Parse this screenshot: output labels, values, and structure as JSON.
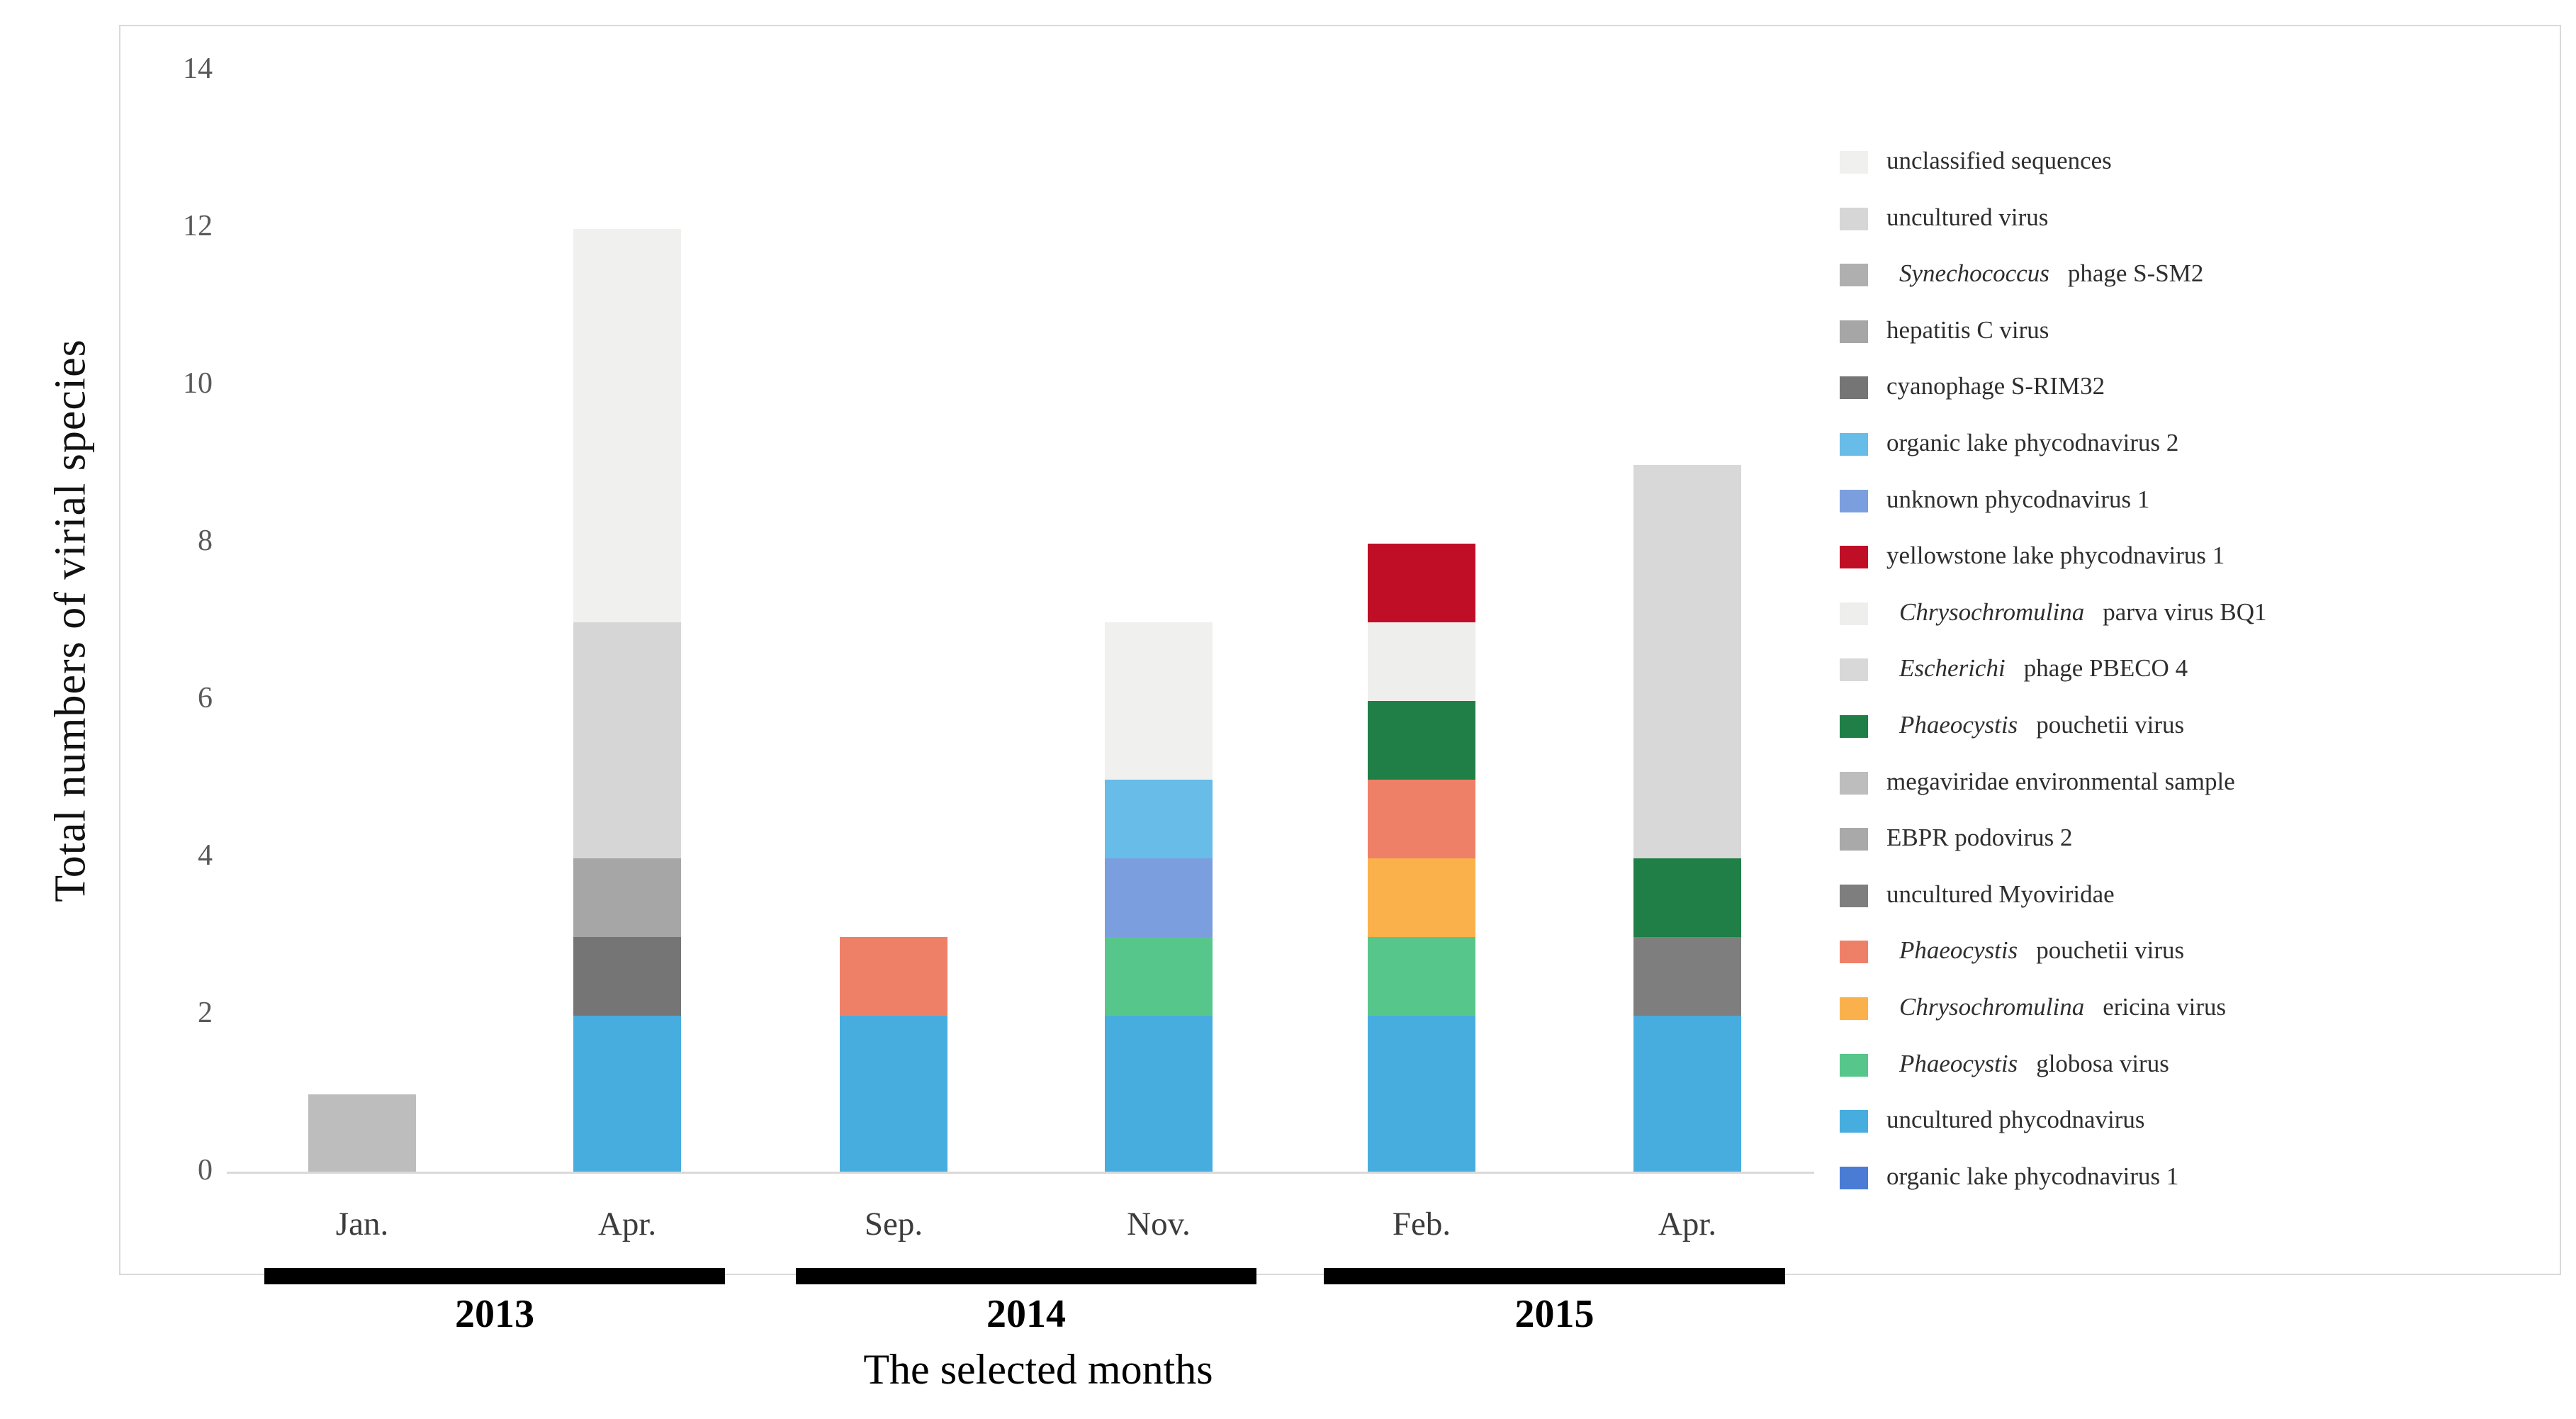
{
  "chart_data": {
    "type": "bar",
    "stacked": true,
    "title": "",
    "xlabel": "The selected months",
    "ylabel": "Total numbers of virial species",
    "ylim": [
      0,
      14
    ],
    "yticks": [
      0,
      2,
      4,
      6,
      8,
      10,
      12,
      14
    ],
    "grid": false,
    "legend_position": "right",
    "months": [
      "Jan.",
      "Apr.",
      "Sep.",
      "Nov.",
      "Feb.",
      "Apr."
    ],
    "year_groups": [
      {
        "label": "2013",
        "from": 0,
        "to": 1
      },
      {
        "label": "2014",
        "from": 2,
        "to": 3
      },
      {
        "label": "2015",
        "from": 4,
        "to": 5
      }
    ],
    "category_totals": [
      1,
      12,
      3,
      7,
      8,
      9
    ],
    "series": [
      {
        "name": "unclassified sequences",
        "italic": "",
        "text": "unclassified sequences",
        "color": "#f0f0ee",
        "values": [
          0,
          5,
          0,
          2,
          0,
          0
        ]
      },
      {
        "name": "uncultured virus",
        "italic": "",
        "text": "uncultured virus",
        "color": "#d6d6d6",
        "values": [
          0,
          3,
          0,
          0,
          0,
          0
        ]
      },
      {
        "name": "Synechococcus phage S-SM2",
        "italic": "Synechococcus",
        "text": "phage S-SM2",
        "color": "#afafaf",
        "values": [
          0,
          0,
          0,
          0,
          0,
          0
        ]
      },
      {
        "name": "hepatitis C virus",
        "italic": "",
        "text": "hepatitis C virus",
        "color": "#a6a6a6",
        "values": [
          0,
          1,
          0,
          0,
          0,
          0
        ]
      },
      {
        "name": "cyanophage S-RIM32",
        "italic": "",
        "text": "cyanophage S-RIM32",
        "color": "#757575",
        "values": [
          0,
          1,
          0,
          0,
          0,
          0
        ]
      },
      {
        "name": "organic lake phycodnavirus 2",
        "italic": "",
        "text": "organic lake phycodnavirus 2",
        "color": "#68bce8",
        "values": [
          0,
          0,
          0,
          1,
          0,
          0
        ]
      },
      {
        "name": "unknown phycodnavirus 1",
        "italic": "",
        "text": "unknown phycodnavirus 1",
        "color": "#7b9ede",
        "values": [
          0,
          0,
          0,
          1,
          0,
          0
        ]
      },
      {
        "name": "yellowstone lake phycodnavirus 1",
        "italic": "",
        "text": "yellowstone lake phycodnavirus 1",
        "color": "#c00e27",
        "values": [
          0,
          0,
          0,
          0,
          1,
          0
        ]
      },
      {
        "name": "Chrysochromulina parva virus BQ1",
        "italic": "Chrysochromulina",
        "text": "parva virus BQ1",
        "color": "#eeeeec",
        "values": [
          0,
          0,
          0,
          0,
          1,
          0
        ]
      },
      {
        "name": "Escherichi phage PBECO 4",
        "italic": "Escherichi",
        "text": "phage PBECO 4",
        "color": "#d8d8d8",
        "values": [
          0,
          0,
          0,
          0,
          0,
          5
        ]
      },
      {
        "name": "Phaeocystis pouchetii virus",
        "italic": "Phaeocystis",
        "text": "pouchetii virus",
        "color": "#1f7f47",
        "values": [
          0,
          0,
          0,
          0,
          1,
          1
        ]
      },
      {
        "name": "megaviridae environmental sample",
        "italic": "",
        "text": "megaviridae environmental sample",
        "color": "#bdbdbd",
        "values": [
          1,
          0,
          0,
          0,
          0,
          0
        ]
      },
      {
        "name": "EBPR podovirus 2",
        "italic": "",
        "text": "EBPR podovirus 2",
        "color": "#a9a9a9",
        "values": [
          0,
          0,
          0,
          0,
          0,
          0
        ]
      },
      {
        "name": "uncultured Myoviridae",
        "italic": "",
        "text": "uncultured Myoviridae",
        "color": "#7e7e7e",
        "values": [
          0,
          0,
          0,
          0,
          0,
          1
        ]
      },
      {
        "name": "Phaeocystis pouchetii virus",
        "italic": "Phaeocystis",
        "text": "pouchetii virus",
        "color": "#ef8068",
        "values": [
          0,
          0,
          1,
          0,
          1,
          0
        ]
      },
      {
        "name": "Chrysochromulina ericina virus",
        "italic": "Chrysochromulina",
        "text": "ericina virus",
        "color": "#fbb14b",
        "values": [
          0,
          0,
          0,
          0,
          1,
          0
        ]
      },
      {
        "name": "Phaeocystis globosa virus",
        "italic": "Phaeocystis",
        "text": "globosa virus",
        "color": "#57c68b",
        "values": [
          0,
          0,
          0,
          1,
          1,
          0
        ]
      },
      {
        "name": "uncultured phycodnavirus",
        "italic": "",
        "text": "uncultured phycodnavirus",
        "color": "#47addf",
        "values": [
          0,
          2,
          2,
          2,
          2,
          2
        ]
      },
      {
        "name": "organic lake phycodnavirus 1",
        "italic": "",
        "text": "organic lake phycodnavirus 1",
        "color": "#4a7cd6",
        "values": [
          0,
          0,
          0,
          0,
          0,
          0
        ]
      }
    ]
  }
}
